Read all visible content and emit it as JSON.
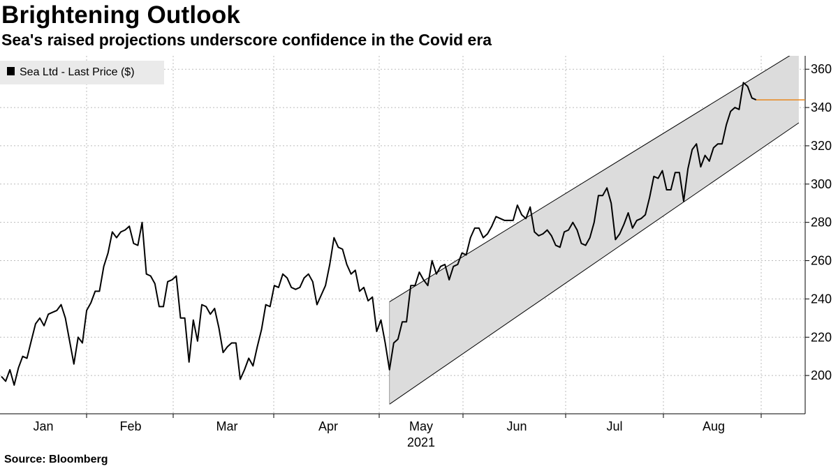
{
  "header": {
    "title": "Brightening Outlook",
    "subtitle": "Sea's raised projections underscore confidence in the Covid era"
  },
  "footer": {
    "source": "Bloomberg",
    "source_label": "Source:"
  },
  "colors": {
    "line": "#000000",
    "channel_fill": "#dcdcdc",
    "channel_edge": "#000000",
    "last_price_marker": "#e8871e",
    "grid": "#bbbbbb",
    "legend_bg": "#eaeaea"
  },
  "chart_data": {
    "type": "line",
    "title": "Brightening Outlook",
    "subtitle": "Sea's raised projections underscore confidence in the Covid era",
    "xlabel": "",
    "ylabel": "",
    "year_label": "2021",
    "x_tick_labels": [
      "Jan",
      "Feb",
      "Mar",
      "Apr",
      "May",
      "Jun",
      "Jul",
      "Aug"
    ],
    "y_ticks": [
      200,
      220,
      240,
      260,
      280,
      300,
      320,
      340,
      360
    ],
    "ylim": [
      180,
      367
    ],
    "grid": true,
    "legend": {
      "position": "top-left",
      "entries": [
        "Sea Ltd - Last Price ($)"
      ]
    },
    "series": [
      {
        "name": "Sea Ltd - Last Price ($)",
        "unit": "$",
        "values": [
          199.5,
          197,
          203,
          195,
          204,
          210,
          209,
          218,
          227,
          230,
          226,
          232,
          233,
          234,
          237,
          230,
          218,
          206,
          220,
          217,
          234,
          238,
          244,
          244,
          257,
          264,
          275,
          272,
          275,
          276,
          278,
          269,
          268,
          280,
          253,
          252,
          248,
          236,
          236,
          249,
          250,
          252,
          230,
          230,
          207,
          229,
          218,
          237,
          236,
          232,
          235,
          225,
          212,
          215,
          217,
          217,
          198,
          203,
          209,
          205,
          215,
          224,
          237,
          236,
          247,
          246,
          253,
          251,
          246,
          245,
          246,
          251,
          253,
          249,
          237,
          242,
          247,
          258,
          272,
          267,
          266,
          258,
          253,
          255,
          244,
          246,
          239,
          241,
          223,
          229,
          217,
          203,
          217,
          219,
          228,
          228,
          247,
          247,
          254,
          250,
          247,
          260,
          253,
          257,
          258,
          250,
          257,
          258,
          264,
          263,
          272,
          277,
          277,
          272,
          274,
          278,
          283,
          282,
          281,
          281,
          281,
          289,
          284,
          282,
          288,
          275,
          273,
          274,
          276,
          273,
          268,
          267,
          275,
          276,
          280,
          276,
          269,
          268,
          272,
          280,
          294,
          294,
          298,
          290,
          271,
          274,
          279,
          285,
          277,
          281,
          282,
          284,
          293,
          304,
          303,
          307,
          297,
          297,
          306,
          306,
          291,
          308,
          318,
          321,
          309,
          315,
          312,
          319,
          321,
          321,
          331,
          338,
          340,
          339,
          353,
          351,
          345,
          344,
          344,
          344,
          344,
          344,
          344,
          344,
          344,
          344,
          344,
          344,
          344
        ]
      }
    ],
    "trend_channel": {
      "start_index": 91,
      "end_index": 187,
      "upper": [
        238.5,
        370
      ],
      "lower": [
        185,
        332
      ]
    },
    "last_price": 344
  }
}
